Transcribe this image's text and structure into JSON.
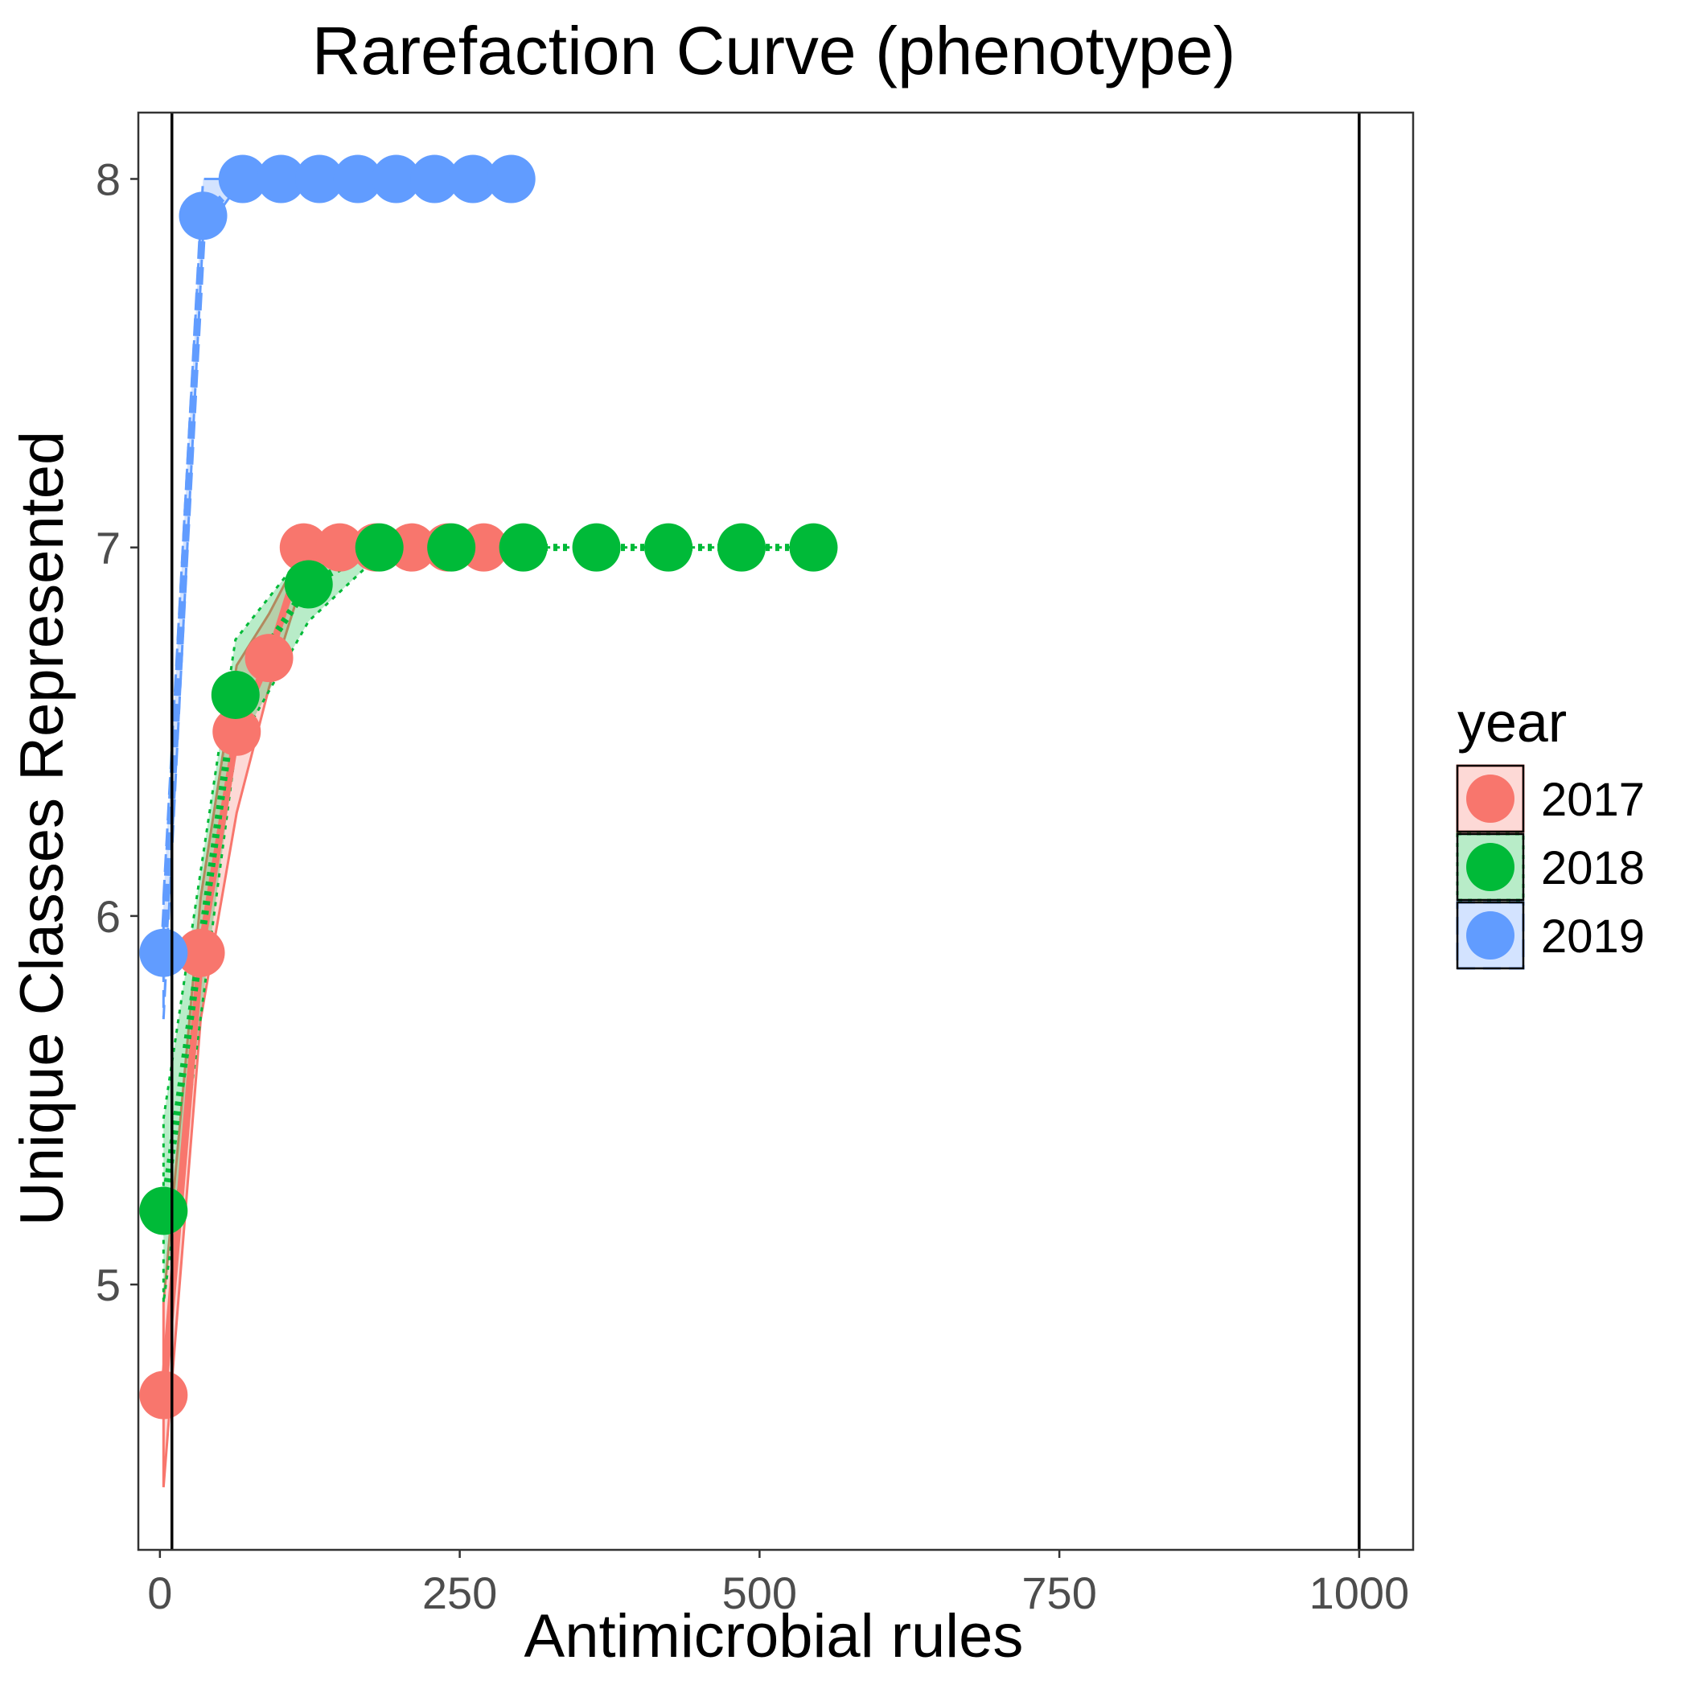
{
  "chart_data": {
    "type": "line",
    "title": "Rarefaction Curve (phenotype)",
    "xlabel": "Antimicrobial rules",
    "ylabel": "Unique Classes Represented",
    "xlim": [
      -18,
      1045
    ],
    "ylim": [
      4.28,
      8.18
    ],
    "xticks": [
      0,
      250,
      500,
      750,
      1000
    ],
    "xtick_labels": [
      "0",
      "250",
      "500",
      "750",
      "1000"
    ],
    "yticks": [
      5,
      6,
      7,
      8
    ],
    "ytick_labels": [
      "5",
      "6",
      "7",
      "8"
    ],
    "vlines": [
      10,
      1000
    ],
    "grid": false,
    "legend": {
      "title": "year",
      "position": "right",
      "labels": [
        "2017",
        "2018",
        "2019"
      ]
    },
    "series": [
      {
        "name": "2017",
        "color": "#F8766D",
        "line_style": "solid",
        "x": [
          3,
          34,
          64,
          91,
          120,
          150,
          180,
          210,
          240,
          270
        ],
        "y": [
          4.7,
          5.9,
          6.5,
          6.7,
          7.0,
          7.0,
          7.0,
          7.0,
          7.0,
          7.0
        ],
        "lower": [
          4.45,
          5.72,
          6.28,
          6.62,
          6.92,
          6.98,
          7.0,
          7.0,
          7.0,
          7.0
        ],
        "upper": [
          4.95,
          6.05,
          6.68,
          6.82,
          7.0,
          7.0,
          7.0,
          7.0,
          7.0,
          7.0
        ]
      },
      {
        "name": "2018",
        "color": "#00BA38",
        "line_style": "dotted",
        "x": [
          3,
          63,
          124,
          183,
          243,
          303,
          364,
          424,
          485,
          545
        ],
        "y": [
          5.2,
          6.6,
          6.9,
          7.0,
          7.0,
          7.0,
          7.0,
          7.0,
          7.0,
          7.0
        ],
        "lower": [
          4.95,
          6.45,
          6.8,
          6.98,
          7.0,
          7.0,
          7.0,
          7.0,
          7.0,
          7.0
        ],
        "upper": [
          5.45,
          6.75,
          7.0,
          7.0,
          7.0,
          7.0,
          7.0,
          7.0,
          7.0,
          7.0
        ]
      },
      {
        "name": "2019",
        "color": "#619CFF",
        "line_style": "dashed",
        "x": [
          3,
          36,
          69,
          101,
          133,
          165,
          197,
          229,
          261,
          293
        ],
        "y": [
          5.9,
          7.9,
          8.0,
          8.0,
          8.0,
          8.0,
          8.0,
          8.0,
          8.0,
          8.0
        ],
        "lower": [
          5.72,
          7.85,
          8.0,
          8.0,
          8.0,
          8.0,
          8.0,
          8.0,
          8.0,
          8.0
        ],
        "upper": [
          6.05,
          8.0,
          8.0,
          8.0,
          8.0,
          8.0,
          8.0,
          8.0,
          8.0,
          8.0
        ]
      }
    ]
  }
}
